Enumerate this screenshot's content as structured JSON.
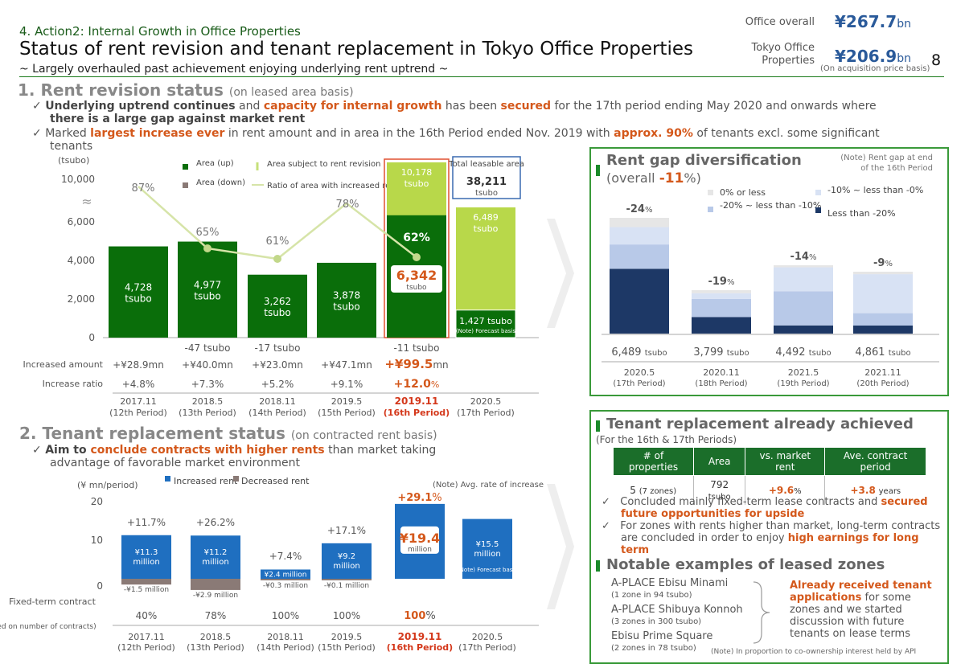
{
  "header": {
    "subtitle": "4. Action2: Internal Growth in Office Properties",
    "title": "Status of rent revision and tenant replacement in Tokyo Office Properties",
    "tagline": "~ Largely overhauled past achievement enjoying underlying rent uptrend ~",
    "page_number": "8",
    "kpi1_label": "Office overall",
    "kpi1_value": "¥267.7",
    "kpi1_unit": "bn",
    "kpi2_label_1": "Tokyo Office",
    "kpi2_label_2": "Properties",
    "kpi2_value": "¥206.9",
    "kpi2_unit": "bn",
    "kpi_note": "(On acquisition price basis)"
  },
  "sec1": {
    "title": "1. Rent revision status",
    "note": "(on leased area basis)",
    "b1_pre": "Underlying uptrend continues",
    "b1_mid1": " and ",
    "b1_or1": "capacity for internal growth",
    "b1_mid2": " has been ",
    "b1_or2": "secured",
    "b1_post": " for the 17th period ending May 2020 and onwards where",
    "b1_line2": "there is a large gap against market rent",
    "b2_pre": "Marked ",
    "b2_or1": "largest increase ever",
    "b2_mid": " in rent amount and in area in the 16th Period ended Nov. 2019 with ",
    "b2_or2": "approx. 90%",
    "b2_post": " of tenants excl. some significant",
    "b2_line2": "tenants"
  },
  "chart1": {
    "unit": "(tsubo)",
    "yticks": [
      "10,000",
      "6,000",
      "4,000",
      "2,000",
      "0"
    ],
    "legend_up": "Area (up)",
    "legend_down": "Area (down)",
    "legend_subject": "Area subject to rent revision",
    "legend_ratio": "Ratio of area with increased rent",
    "total_label": "Total leasable area",
    "total_value": "38,211",
    "total_unit": "tsubo",
    "subject_16": "10,178",
    "subject_17": "6,489",
    "tsubo": "tsubo",
    "forecast_value": "1,427 tsubo",
    "forecast_note": "(Note) Forecast basis",
    "row_amount_label": "Increased amount",
    "row_ratio_label": "Increase ratio"
  },
  "chart_data": [
    {
      "type": "bar",
      "categories": [
        "2017.11 (12th Period)",
        "2018.5 (13th Period)",
        "2018.11 (14th Period)",
        "2019.5 (15th Period)",
        "2019.11 (16th Period)",
        "2020.5 (17th Period)"
      ],
      "ylabel": "(tsubo)",
      "series": [
        {
          "name": "Area (up)",
          "values": [
            4728,
            4977,
            3262,
            3878,
            6342,
            1427
          ],
          "labels": [
            "4,728",
            "4,977",
            "3,262",
            "3,878",
            "6,342",
            "1,427 tsubo"
          ]
        },
        {
          "name": "Area (down)",
          "values": [
            0,
            47,
            17,
            0,
            11,
            null
          ],
          "labels": [
            "",
            "-47 tsubo",
            "-17 tsubo",
            "",
            "-11 tsubo",
            ""
          ]
        },
        {
          "name": "Area subject to rent revision",
          "values": [
            null,
            null,
            null,
            null,
            10178,
            6489
          ]
        },
        {
          "name": "Ratio of area with increased rent",
          "values": [
            87,
            65,
            61,
            78,
            62,
            null
          ],
          "labels": [
            "87%",
            "65%",
            "61%",
            "78%",
            "62%",
            ""
          ]
        }
      ],
      "increased_amount": [
        "+¥28.9mn",
        "+¥40.0mn",
        "+¥23.0mn",
        "+¥47.1mn",
        "+¥99.5",
        ""
      ],
      "increase_ratio": [
        "+4.8%",
        "+7.3%",
        "+5.2%",
        "+9.1%",
        "+12.0",
        ""
      ]
    },
    {
      "type": "bar",
      "categories": [
        "2017.11 (12th Period)",
        "2018.5 (13th Period)",
        "2018.11 (14th Period)",
        "2019.5 (15th Period)",
        "2019.11 (16th Period)",
        "2020.5 (17th Period)"
      ],
      "ylabel": "(¥ mn/period)",
      "yticks": [
        "20",
        "10",
        "0"
      ],
      "series": [
        {
          "name": "Increased rent",
          "values": [
            11.3,
            11.2,
            2.4,
            9.2,
            19.4,
            15.5
          ]
        },
        {
          "name": "Decreased rent",
          "values": [
            -1.5,
            -2.9,
            -0.3,
            -0.1,
            null,
            null
          ]
        }
      ],
      "avg_rate": [
        "+11.7%",
        "+26.2%",
        "+7.4%",
        "+17.1%",
        "+29.1",
        ""
      ],
      "fixed_term": [
        "40%",
        "78%",
        "100%",
        "100%",
        "100",
        ""
      ]
    },
    {
      "type": "bar",
      "title": "Rent gap diversification",
      "categories": [
        "2020.5 (17th Period)",
        "2020.11 (18th Period)",
        "2021.5 (19th Period)",
        "2021.11 (20th Period)"
      ],
      "series": [
        {
          "name": "Less than -20%",
          "values": [
            0.56,
            0.38,
            0.12,
            0.13
          ]
        },
        {
          "name": "-20% ~ less than -10%",
          "values": [
            0.21,
            0.42,
            0.5,
            0.2
          ]
        },
        {
          "name": "-10% ~ less than -0%",
          "values": [
            0.15,
            0.13,
            0.35,
            0.63
          ]
        },
        {
          "name": "0% or less",
          "values": [
            0.08,
            0.07,
            0.03,
            0.04
          ]
        }
      ],
      "gap": [
        "-24",
        "-19",
        "-14",
        "-9"
      ],
      "area": [
        "6,489",
        "3,799",
        "4,492",
        "4,861"
      ]
    }
  ],
  "gap": {
    "title": "Rent gap diversification",
    "overall_pre": "(overall ",
    "overall_val": "-11",
    "overall_post": "%)",
    "note1": "(Note) Rent gap at end",
    "note2": "of the 16th Period",
    "lg_0": "0% or less",
    "lg_10": "-10% ~ less than -0%",
    "lg_20": "-20% ~ less than -10%",
    "lg_l20": "Less than -20%",
    "pct": "%",
    "tsubo": "tsubo"
  },
  "sec2": {
    "title": "2. Tenant replacement status",
    "note": "(on contracted rent basis)",
    "b1_pre": "Aim to ",
    "b1_or": "conclude contracts with higher rents",
    "b1_post": " than market taking",
    "b1_line2": "advantage of favorable market environment",
    "unit": "(¥ mn/period)",
    "legend_inc": "Increased rent",
    "legend_dec": "Decreased rent",
    "avg_note": "(Note) Avg. rate of increase",
    "million": "million",
    "forecast_note": "(Note) Forecast basis",
    "fixed_label": "Fixed-term contract",
    "fixed_note": "(Based on number of contracts)",
    "pct": "%"
  },
  "replace": {
    "title": "Tenant replacement already achieved",
    "sub": "(For the 16th & 17th Periods)",
    "h1": "# of properties",
    "h2": "Area",
    "h3": "vs. market rent",
    "h4": "Ave. contract period",
    "v1": "5",
    "v1n": "(7 zones)",
    "v2": "792",
    "v2n": "tsubo",
    "v3": "+9.6",
    "v3n": "%",
    "v4": "+3.8",
    "v4n": "years",
    "c1_pre": "Concluded mainly fixed-term lease contracts and ",
    "c1_or1": "secured",
    "c1_or2": "future opportunities for upside",
    "c2_pre": "For zones with rents higher than market, long-term contracts are concluded in order to enjoy ",
    "c2_or": "high earnings for long term"
  },
  "notable": {
    "title": "Notable examples of leased zones",
    "z1": "A-PLACE Ebisu Minami",
    "z1n": "(1 zone in 94 tsubo)",
    "z2": "A-PLACE Shibuya Konnoh",
    "z2n": "(3 zones in 300 tsubo)",
    "z3": "Ebisu Prime Square",
    "z3n": "(2 zones in 78 tsubo)",
    "r_or": "Already received tenant applications",
    "r_post": " for some zones and we started discussion with future tenants on lease terms",
    "foot": "(Note) In proportion to co-ownership interest held by API"
  },
  "colors": {
    "green_dark": "#0a6e0a",
    "green_light": "#b8d84a",
    "blue": "#1f6fc0",
    "navy": "#1d3866",
    "orange": "#d4581b",
    "grey": "#8a7a76"
  }
}
